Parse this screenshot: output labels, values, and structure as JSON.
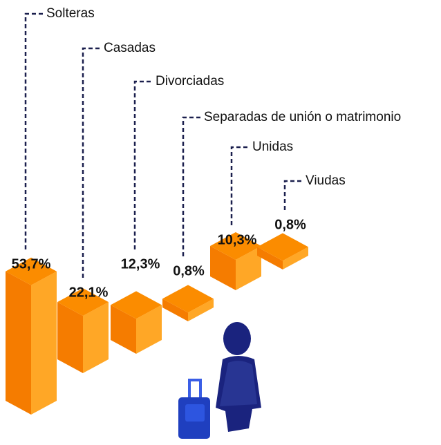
{
  "chart_data": {
    "type": "bar",
    "categories": [
      "Solteras",
      "Casadas",
      "Divorciadas",
      "Separadas de unión o matrimonio",
      "Unidas",
      "Viudas"
    ],
    "values": [
      53.7,
      22.1,
      12.3,
      0.8,
      10.3,
      0.8
    ],
    "value_labels": [
      "53,7%",
      "22,1%",
      "12,3%",
      "0,8%",
      "10,3%",
      "0,8%"
    ],
    "color": "#fb8c00"
  }
}
